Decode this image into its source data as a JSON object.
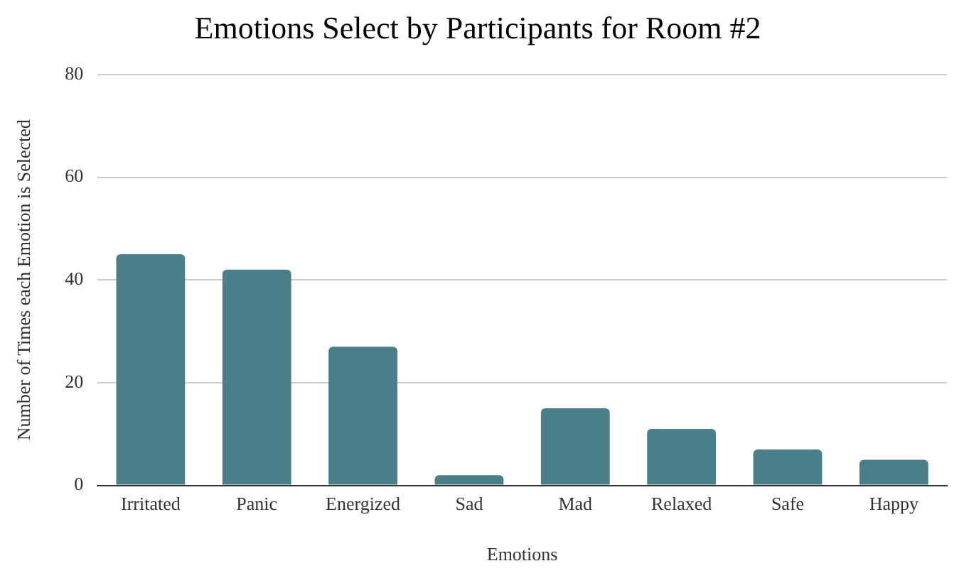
{
  "chart_data": {
    "type": "bar",
    "title": "Emotions Select by Participants for Room #2",
    "xlabel": "Emotions",
    "ylabel": "Number of Times each Emotion is Selected",
    "categories": [
      "Irritated",
      "Panic",
      "Energized",
      "Sad",
      "Mad",
      "Relaxed",
      "Safe",
      "Happy"
    ],
    "values": [
      45,
      42,
      27,
      2,
      15,
      11,
      7,
      5
    ],
    "color": "#4a7f89",
    "ylim": [
      0,
      80
    ],
    "yticks": [
      0,
      20,
      40,
      60,
      80
    ],
    "grid": "y",
    "legend": false
  }
}
